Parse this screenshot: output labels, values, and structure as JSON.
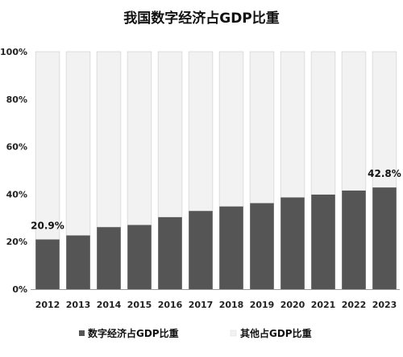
{
  "chart_data": {
    "type": "bar",
    "title": "我国数字经济占GDP比重",
    "categories": [
      "2012",
      "2013",
      "2014",
      "2015",
      "2016",
      "2017",
      "2018",
      "2019",
      "2020",
      "2021",
      "2022",
      "2023"
    ],
    "series": [
      {
        "name": "数字经济占GDP比重",
        "values": [
          20.9,
          22.6,
          26.1,
          27.0,
          30.3,
          32.9,
          34.8,
          36.2,
          38.6,
          39.8,
          41.5,
          42.8
        ]
      },
      {
        "name": "其他占GDP比重",
        "values": [
          79.1,
          77.4,
          73.9,
          73.0,
          69.7,
          67.1,
          65.2,
          63.8,
          61.4,
          60.2,
          58.5,
          57.2
        ]
      }
    ],
    "stacked": true,
    "ylim": [
      0,
      100
    ],
    "yticks": [
      "0%",
      "20%",
      "40%",
      "60%",
      "80%",
      "100%"
    ],
    "data_labels": [
      {
        "category": "2012",
        "text": "20.9%"
      },
      {
        "category": "2023",
        "text": "42.8%"
      }
    ],
    "legend": "bottom",
    "colors": {
      "digital": "#555555",
      "other": "#f2f2f2",
      "axis": "#999999"
    }
  }
}
